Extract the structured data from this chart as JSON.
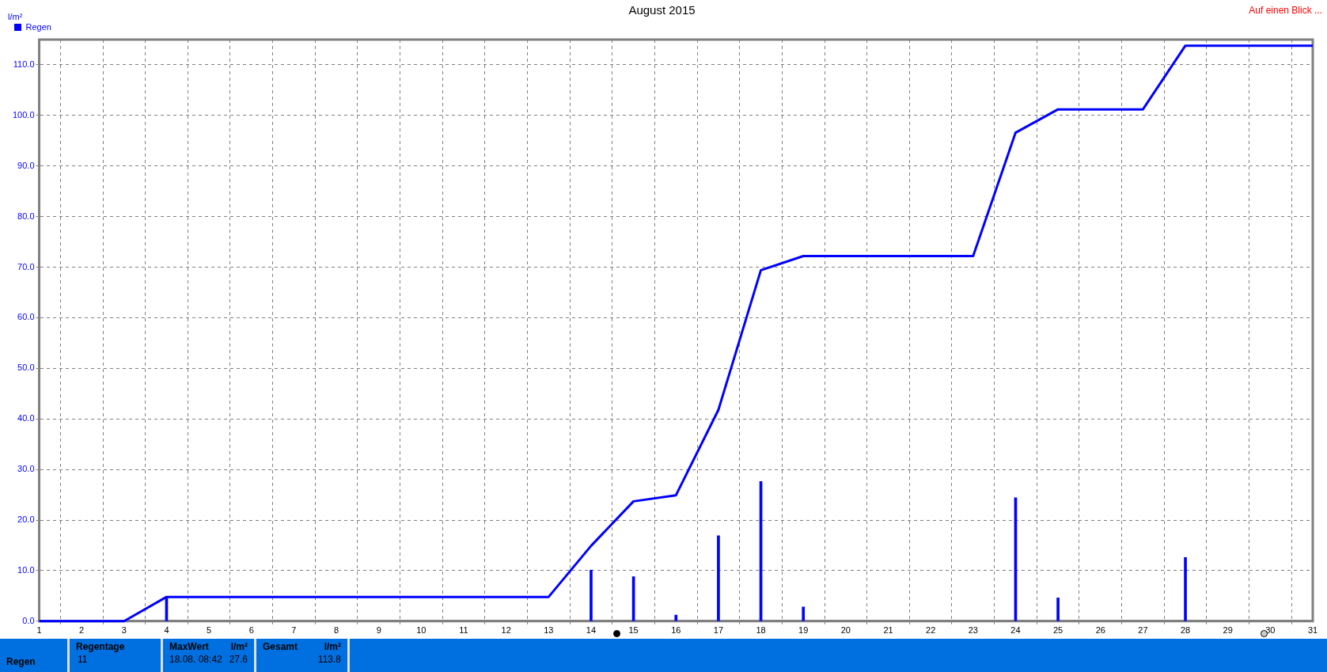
{
  "chart_data": {
    "type": "bar",
    "title": "August 2015",
    "ylabel": "l/m²",
    "annotations": [
      "Auf einen Blick ...",
      "Regen",
      "Regentage",
      "11",
      "MaxWert",
      "l/m²",
      "18.08.  08:42",
      "27.6",
      "Gesamt",
      "l/m²",
      "113.8"
    ],
    "series": [
      {
        "name": "Regen",
        "color": "#0000ff",
        "x": [
          4,
          14,
          15,
          16,
          17,
          18,
          19,
          24,
          25,
          28
        ],
        "values": [
          4.8,
          10.1,
          8.8,
          1.2,
          16.9,
          27.6,
          2.8,
          24.4,
          4.6,
          12.6
        ]
      },
      {
        "type": "line",
        "color": "#0000ff",
        "x": [
          1,
          3,
          4,
          13,
          14,
          15,
          16,
          17,
          18,
          19,
          20.5,
          23,
          24,
          25,
          27,
          28,
          31
        ],
        "values": [
          0,
          0,
          4.8,
          4.8,
          14.9,
          23.7,
          24.9,
          41.8,
          69.4,
          72.2,
          72.2,
          72.2,
          96.6,
          101.2,
          101.2,
          113.8,
          113.8
        ]
      }
    ],
    "xlim": [
      1,
      31
    ],
    "xticks": [
      1,
      2,
      3,
      4,
      5,
      6,
      7,
      8,
      9,
      10,
      11,
      12,
      13,
      14,
      15,
      16,
      17,
      18,
      19,
      20,
      21,
      22,
      23,
      24,
      25,
      26,
      27,
      28,
      29,
      30,
      31
    ],
    "ylim": [
      0,
      115
    ],
    "yticks": [
      {
        "value": 0,
        "label": "0.0"
      },
      {
        "value": 10,
        "label": "10.0"
      },
      {
        "value": 20,
        "label": "20.0"
      },
      {
        "value": 30,
        "label": "30.0"
      },
      {
        "value": 40,
        "label": "40.0"
      },
      {
        "value": 50,
        "label": "50.0"
      },
      {
        "value": 60,
        "label": "60.0"
      },
      {
        "value": 70,
        "label": "70.0"
      },
      {
        "value": 80,
        "label": "80.0"
      },
      {
        "value": 90,
        "label": "90.0"
      },
      {
        "value": 100,
        "label": "100.0"
      },
      {
        "value": 110,
        "label": "110.0"
      }
    ],
    "grid": true,
    "legend": "top left",
    "marker": "none",
    "line_style": "solid"
  }
}
